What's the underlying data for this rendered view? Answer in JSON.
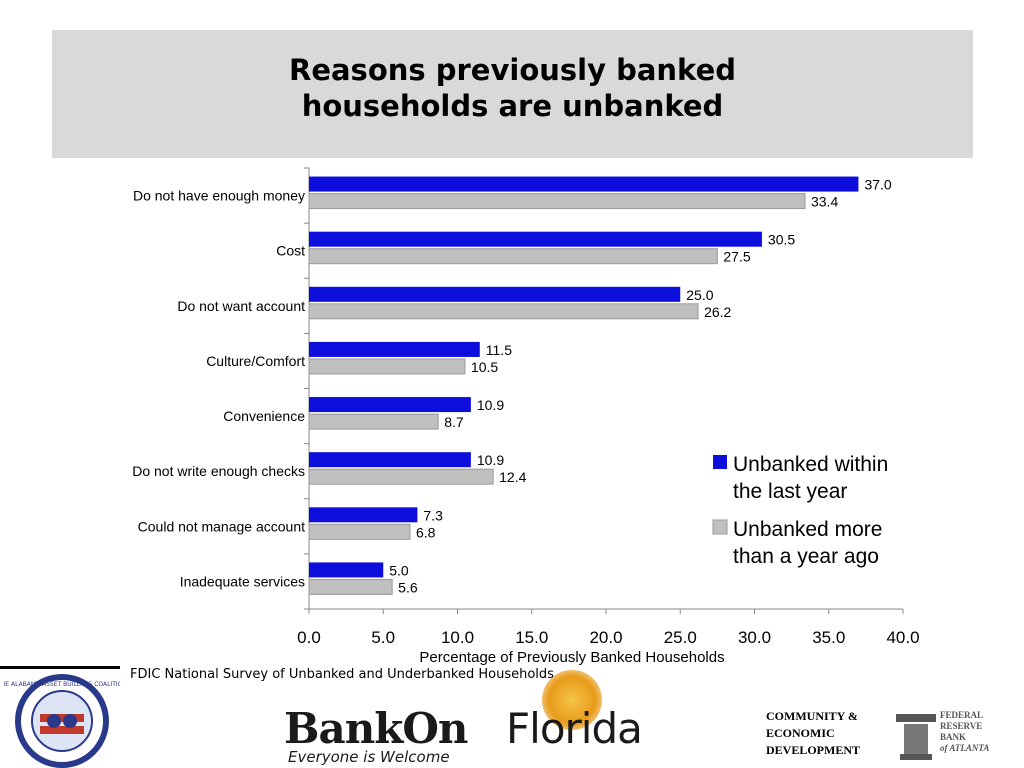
{
  "title_line1": "Reasons previously banked",
  "title_line2": "households are unbanked",
  "source": "FDIC National Survey of Unbanked and Underbanked Households",
  "chart_data": {
    "type": "bar",
    "orientation": "horizontal",
    "categories": [
      "Do not have enough money",
      "Cost",
      "Do not want account",
      "Culture/Comfort",
      "Convenience",
      "Do not write enough checks",
      "Could not manage account",
      "Inadequate services"
    ],
    "series": [
      {
        "name": "Unbanked within the last year",
        "color": "#0d0ddc",
        "values": [
          37.0,
          30.5,
          25.0,
          11.5,
          10.9,
          10.9,
          7.3,
          5.0
        ],
        "labels": [
          "37.0",
          "30.5",
          "25.0",
          "11.5",
          "10.9",
          "10.9",
          "7.3",
          "5.0"
        ]
      },
      {
        "name": "Unbanked more than a year ago",
        "color": "#bfbfbf",
        "values": [
          33.4,
          27.5,
          26.2,
          10.5,
          8.7,
          12.4,
          6.8,
          5.6
        ],
        "labels": [
          "33.4",
          "27.5",
          "26.2",
          "10.5",
          "8.7",
          "12.4",
          "6.8",
          "5.6"
        ]
      }
    ],
    "xlabel": "Percentage of Previously Banked Households",
    "xlim": [
      0,
      40
    ],
    "xticks": [
      "0.0",
      "5.0",
      "10.0",
      "15.0",
      "20.0",
      "25.0",
      "30.0",
      "35.0",
      "40.0"
    ],
    "legend_position": "right",
    "legend_lines": [
      [
        "Unbanked within",
        "the last year"
      ],
      [
        "Unbanked more",
        "than a year ago"
      ]
    ],
    "grid": false
  },
  "footer": {
    "coalition_logo_text": "THE ALABAMA ASSET BUILDING COALITION",
    "bankon_part1": "BankOn",
    "bankon_part2": "Florida",
    "bankon_tagline": "Everyone is Welcome",
    "community_lines": [
      "COMMUNITY &",
      "ECONOMIC",
      "DEVELOPMENT"
    ],
    "fed_lines": [
      "FEDERAL",
      "RESERVE",
      "BANK"
    ],
    "fed_atlanta": "of ATLANTA"
  }
}
